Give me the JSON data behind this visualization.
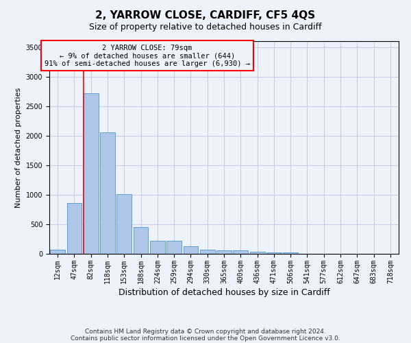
{
  "title": "2, YARROW CLOSE, CARDIFF, CF5 4QS",
  "subtitle": "Size of property relative to detached houses in Cardiff",
  "xlabel": "Distribution of detached houses by size in Cardiff",
  "ylabel": "Number of detached properties",
  "categories": [
    "12sqm",
    "47sqm",
    "82sqm",
    "118sqm",
    "153sqm",
    "188sqm",
    "224sqm",
    "259sqm",
    "294sqm",
    "330sqm",
    "365sqm",
    "400sqm",
    "436sqm",
    "471sqm",
    "506sqm",
    "541sqm",
    "577sqm",
    "612sqm",
    "647sqm",
    "683sqm",
    "718sqm"
  ],
  "values": [
    65,
    860,
    2720,
    2050,
    1010,
    455,
    225,
    225,
    130,
    65,
    55,
    55,
    35,
    20,
    20,
    5,
    5,
    5,
    5,
    5,
    5
  ],
  "bar_color": "#aec6e8",
  "bar_edge_color": "#5a9fd4",
  "vline_color": "red",
  "vline_x": 1.575,
  "ylim": [
    0,
    3600
  ],
  "yticks": [
    0,
    500,
    1000,
    1500,
    2000,
    2500,
    3000,
    3500
  ],
  "annotation_text": "2 YARROW CLOSE: 79sqm\n← 9% of detached houses are smaller (644)\n91% of semi-detached houses are larger (6,930) →",
  "annotation_box_color": "red",
  "footnote1": "Contains HM Land Registry data © Crown copyright and database right 2024.",
  "footnote2": "Contains public sector information licensed under the Open Government Licence v3.0.",
  "bg_color": "#eef2fb",
  "grid_color": "#c8cfe0",
  "title_fontsize": 11,
  "subtitle_fontsize": 9,
  "xlabel_fontsize": 9,
  "ylabel_fontsize": 8,
  "tick_fontsize": 7,
  "annotation_fontsize": 7.5,
  "footnote_fontsize": 6.5
}
